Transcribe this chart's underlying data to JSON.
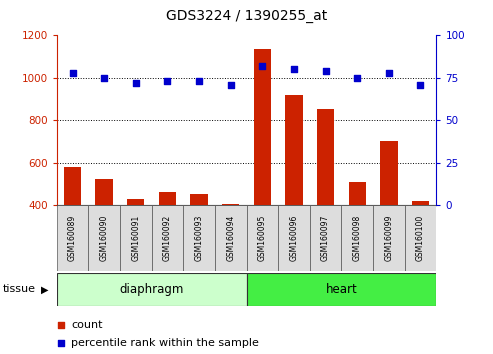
{
  "title": "GDS3224 / 1390255_at",
  "samples": [
    "GSM160089",
    "GSM160090",
    "GSM160091",
    "GSM160092",
    "GSM160093",
    "GSM160094",
    "GSM160095",
    "GSM160096",
    "GSM160097",
    "GSM160098",
    "GSM160099",
    "GSM160100"
  ],
  "count_values": [
    580,
    525,
    430,
    462,
    452,
    408,
    1135,
    920,
    855,
    510,
    705,
    420
  ],
  "percentile_values": [
    78,
    75,
    72,
    73,
    73,
    71,
    82,
    80,
    79,
    75,
    78,
    71
  ],
  "ylim_left": [
    400,
    1200
  ],
  "ylim_right": [
    0,
    100
  ],
  "yticks_left": [
    400,
    600,
    800,
    1000,
    1200
  ],
  "yticks_right": [
    0,
    25,
    50,
    75,
    100
  ],
  "groups": [
    {
      "label": "diaphragm",
      "start": 0,
      "end": 6
    },
    {
      "label": "heart",
      "start": 6,
      "end": 12
    }
  ],
  "bar_color": "#cc2200",
  "dot_color": "#0000cc",
  "bar_bottom": 400,
  "tick_label_color_left": "#cc2200",
  "tick_label_color_right": "#0000cc",
  "legend_count_label": "count",
  "legend_percentile_label": "percentile rank within the sample",
  "tissue_label": "tissue",
  "diaphragm_color": "#ccffcc",
  "heart_color": "#44ee44",
  "sample_box_color": "#dddddd"
}
